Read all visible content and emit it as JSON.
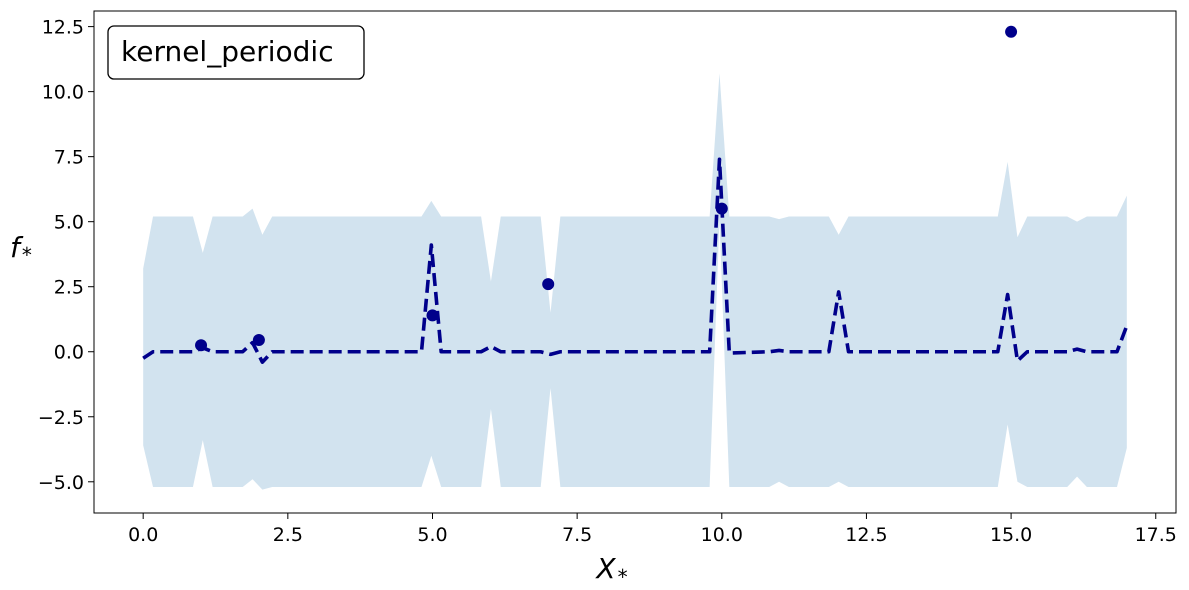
{
  "chart_data": {
    "type": "line",
    "title": "",
    "legend_box": {
      "text": "kernel_periodic",
      "position": "top-left"
    },
    "xlabel": "X",
    "xlabel_subscript": "*",
    "ylabel": "f",
    "ylabel_subscript": "*",
    "xlim": [
      -0.85,
      17.85
    ],
    "ylim": [
      -6.2,
      13.1
    ],
    "xticks": [
      0.0,
      2.5,
      5.0,
      7.5,
      10.0,
      12.5,
      15.0,
      17.5
    ],
    "xtick_labels": [
      "0.0",
      "2.5",
      "5.0",
      "7.5",
      "10.0",
      "12.5",
      "15.0",
      "17.5"
    ],
    "yticks": [
      -5.0,
      -2.5,
      0.0,
      2.5,
      5.0,
      7.5,
      10.0,
      12.5
    ],
    "ytick_labels": [
      "−5.0",
      "−2.5",
      "0.0",
      "2.5",
      "5.0",
      "7.5",
      "10.0",
      "12.5"
    ],
    "grid": false,
    "colors": {
      "mean": "#00008b",
      "band": "#d2e3ef",
      "points": "#00008b"
    },
    "series": [
      {
        "kind": "band",
        "x": [
          0.0,
          0.17,
          0.86,
          1.03,
          1.2,
          1.72,
          1.89,
          2.06,
          2.23,
          4.81,
          4.98,
          5.15,
          5.84,
          6.01,
          6.18,
          6.87,
          7.04,
          7.21,
          9.79,
          9.96,
          10.13,
          10.82,
          10.99,
          11.16,
          11.85,
          12.02,
          12.19,
          14.77,
          14.94,
          15.11,
          15.28,
          15.97,
          16.14,
          16.31,
          16.83,
          17.0
        ],
        "upper": [
          3.2,
          5.2,
          5.2,
          3.8,
          5.2,
          5.2,
          5.5,
          4.5,
          5.2,
          5.2,
          5.8,
          5.2,
          5.2,
          2.7,
          5.2,
          5.2,
          1.5,
          5.2,
          5.2,
          10.7,
          5.2,
          5.2,
          5.1,
          5.2,
          5.2,
          4.5,
          5.2,
          5.2,
          7.3,
          4.4,
          5.2,
          5.2,
          5.0,
          5.2,
          5.2,
          6.0
        ],
        "lower": [
          -3.6,
          -5.2,
          -5.2,
          -3.4,
          -5.2,
          -5.2,
          -4.9,
          -5.3,
          -5.2,
          -5.2,
          -4.0,
          -5.2,
          -5.2,
          -2.2,
          -5.2,
          -5.2,
          -1.4,
          -5.2,
          -5.2,
          5.1,
          -5.2,
          -5.2,
          -5.0,
          -5.2,
          -5.2,
          -5.0,
          -5.2,
          -5.2,
          -2.8,
          -5.0,
          -5.2,
          -5.2,
          -4.8,
          -5.2,
          -5.2,
          -3.7
        ]
      },
      {
        "kind": "mean",
        "x": [
          0.0,
          0.17,
          0.86,
          1.03,
          1.2,
          1.72,
          1.89,
          2.06,
          2.23,
          4.81,
          4.98,
          5.15,
          5.84,
          6.01,
          6.18,
          6.87,
          7.04,
          7.21,
          9.79,
          9.96,
          10.13,
          10.82,
          10.99,
          11.16,
          11.85,
          12.02,
          12.19,
          14.77,
          14.94,
          15.11,
          15.28,
          15.97,
          16.14,
          16.31,
          16.83,
          17.0
        ],
        "y": [
          -0.25,
          0.0,
          0.0,
          0.15,
          0.0,
          0.0,
          0.35,
          -0.4,
          0.0,
          0.0,
          4.1,
          0.0,
          0.0,
          0.2,
          0.0,
          0.0,
          -0.1,
          0.0,
          0.0,
          7.4,
          -0.05,
          0.0,
          0.05,
          0.0,
          0.0,
          2.3,
          0.0,
          0.0,
          2.2,
          -0.35,
          0.0,
          0.0,
          0.1,
          0.0,
          0.0,
          1.0
        ]
      },
      {
        "kind": "points",
        "x": [
          1.0,
          2.0,
          5.0,
          7.0,
          10.0,
          15.0
        ],
        "y": [
          0.25,
          0.45,
          1.4,
          2.6,
          5.5,
          12.3
        ]
      }
    ]
  }
}
